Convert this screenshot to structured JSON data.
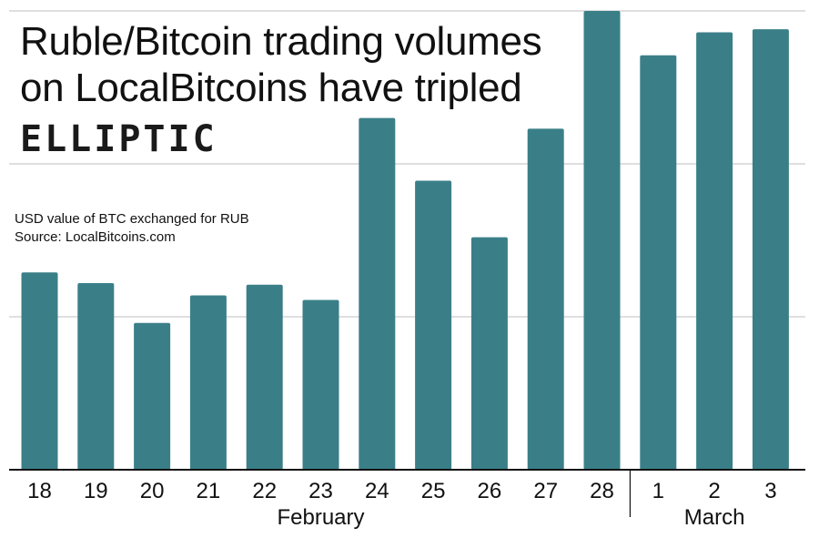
{
  "title_lines": [
    "Ruble/Bitcoin trading volumes",
    "on LocalBitcoins have tripled"
  ],
  "logo_text": "ELLIPTIC",
  "subtitle": "USD value of BTC exchanged for RUB",
  "source": "Source: LocalBitcoins.com",
  "colors": {
    "bar": "#3a7f88",
    "grid": "#cccccc",
    "axis": "#111111"
  },
  "chart_data": {
    "type": "bar",
    "title": "Ruble/Bitcoin trading volumes on LocalBitcoins have tripled",
    "xlabel": "",
    "ylabel": "",
    "categories": [
      "18",
      "19",
      "20",
      "21",
      "22",
      "23",
      "24",
      "25",
      "26",
      "27",
      "28",
      "1",
      "2",
      "3"
    ],
    "values": [
      1.29,
      1.22,
      0.96,
      1.14,
      1.21,
      1.11,
      2.3,
      1.89,
      1.52,
      2.23,
      3.0,
      2.71,
      2.86,
      2.88
    ],
    "ylim": [
      0,
      3.0
    ],
    "gridlines": [
      1,
      2,
      3
    ],
    "groups": [
      {
        "label": "February",
        "start": 0,
        "end": 10
      },
      {
        "label": "March",
        "start": 11,
        "end": 13
      }
    ],
    "y_units": "relative volume (unlabelled axis)"
  }
}
